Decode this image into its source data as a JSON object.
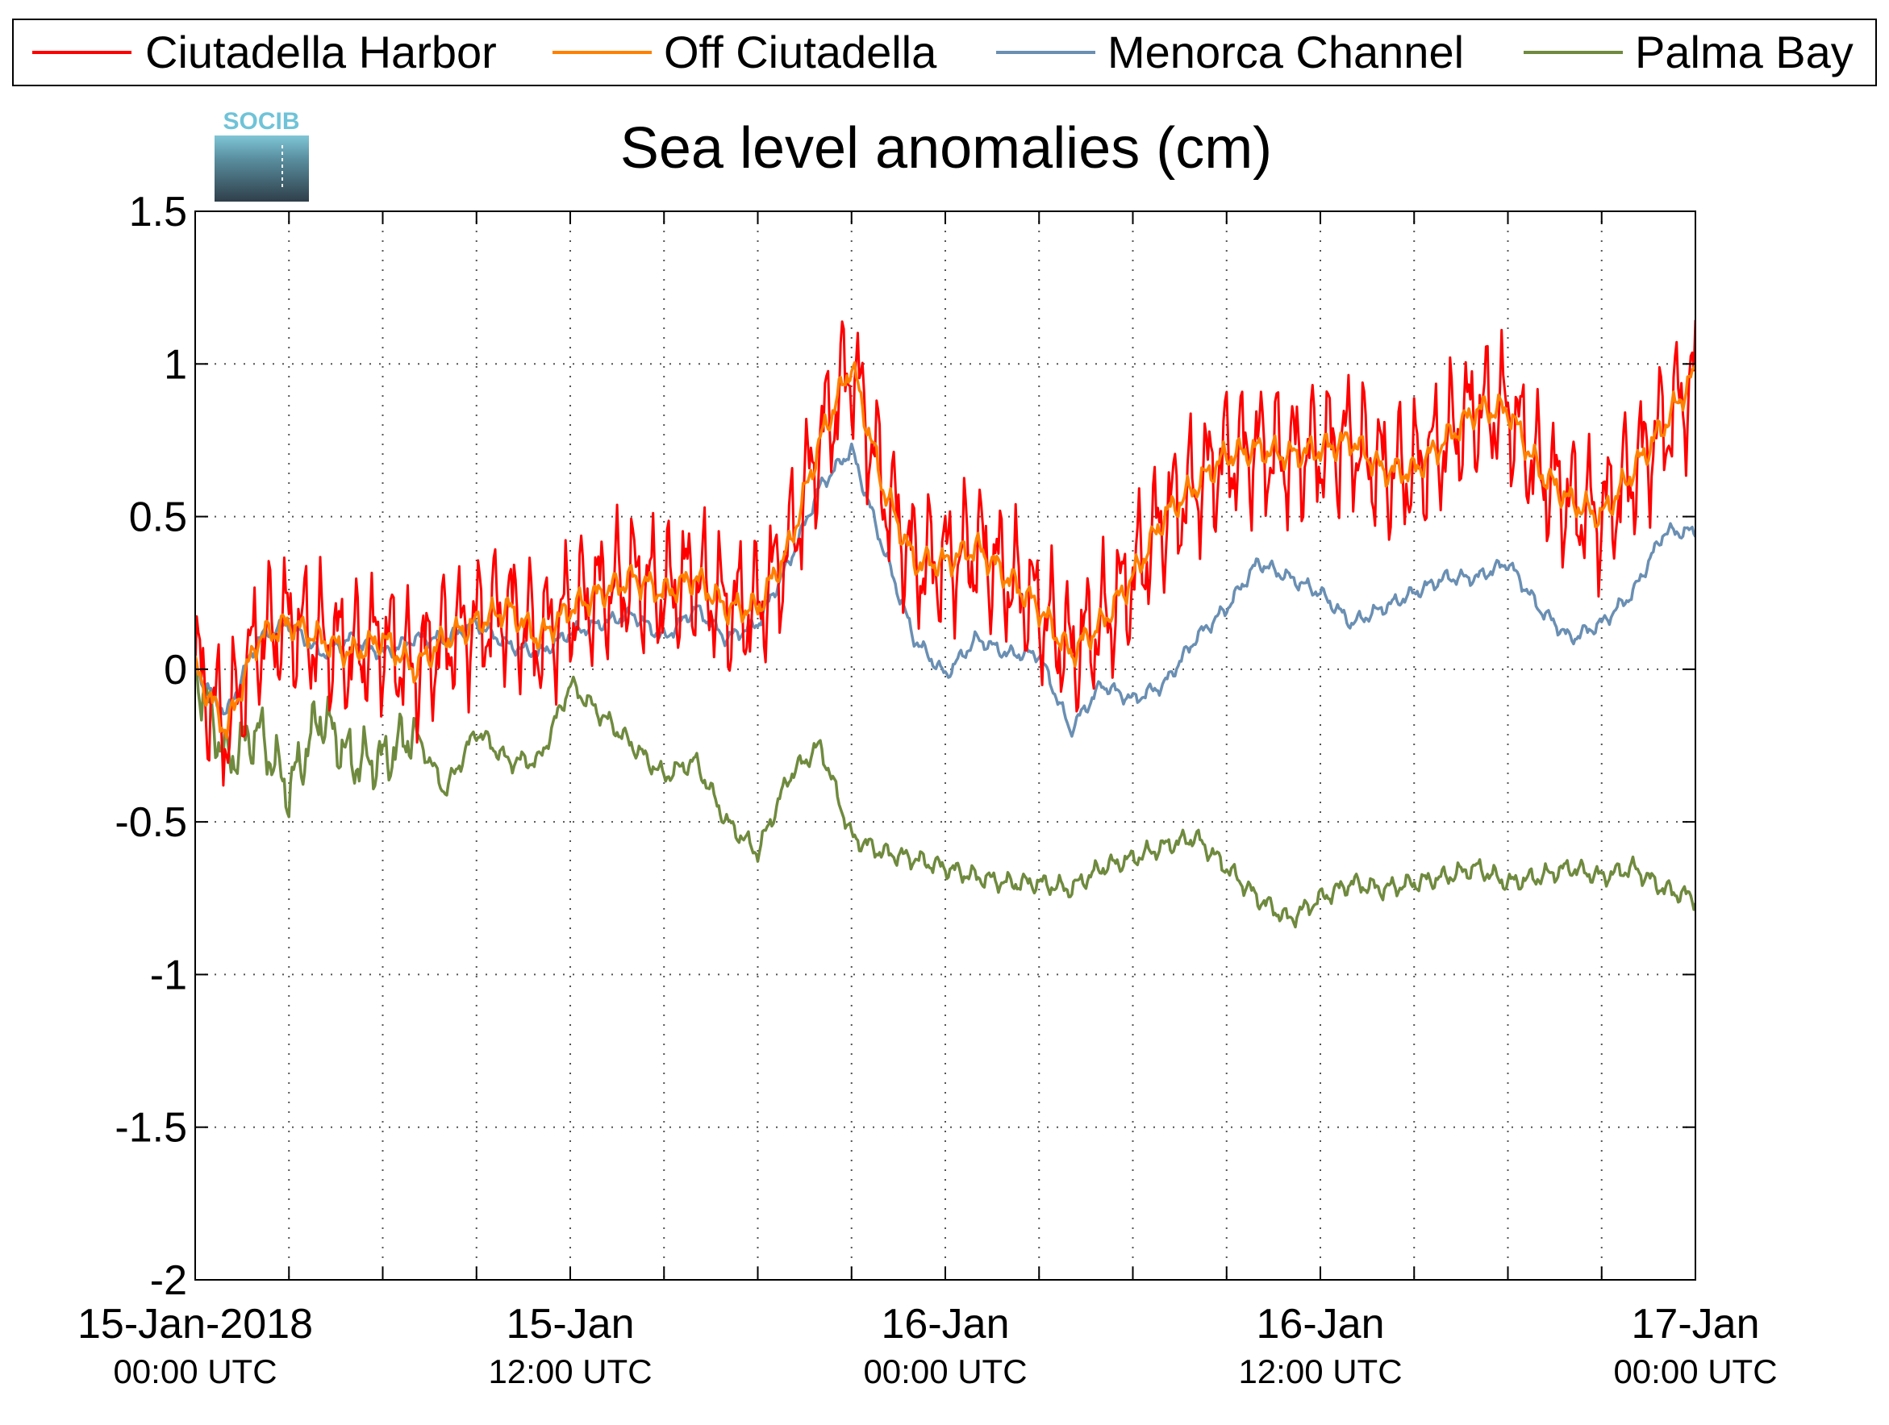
{
  "chart_data": {
    "type": "line",
    "title": "Sea level anomalies (cm)",
    "logo": "SOCIB",
    "xlabel": "",
    "ylabel": "",
    "ylim": [
      -2,
      1.5
    ],
    "yticks": [
      -2,
      -1.5,
      -1,
      -0.5,
      0,
      0.5,
      1,
      1.5
    ],
    "xlim_hours": [
      0,
      48
    ],
    "x_start": "2018-01-15T00:00Z",
    "x_ticks": [
      {
        "date": "15-Jan-2018",
        "time": "00:00 UTC"
      },
      {
        "date": "15-Jan",
        "time": "12:00 UTC"
      },
      {
        "date": "16-Jan",
        "time": "00:00 UTC"
      },
      {
        "date": "16-Jan",
        "time": "12:00 UTC"
      },
      {
        "date": "17-Jan",
        "time": "00:00 UTC"
      }
    ],
    "grid": true,
    "legend_position": "top",
    "series": [
      {
        "name": "Ciutadella Harbor",
        "color": "#ff0000",
        "noise": 0.28,
        "x": [
          0,
          1,
          2,
          3,
          4,
          5,
          6,
          7,
          8,
          9,
          10,
          11,
          12,
          13,
          14,
          15,
          16,
          17,
          18,
          19,
          20,
          21,
          22,
          23,
          24,
          25,
          26,
          27,
          28,
          29,
          30,
          31,
          32,
          33,
          34,
          35,
          36,
          37,
          38,
          39,
          40,
          41,
          42,
          43,
          44,
          45,
          46,
          47,
          48
        ],
        "values": [
          0.0,
          -0.2,
          0.1,
          0.15,
          0.1,
          0.05,
          0.1,
          0.0,
          0.1,
          0.15,
          0.2,
          0.1,
          0.2,
          0.25,
          0.3,
          0.25,
          0.3,
          0.2,
          0.2,
          0.4,
          0.75,
          1.0,
          0.6,
          0.35,
          0.35,
          0.4,
          0.3,
          0.2,
          0.05,
          0.15,
          0.3,
          0.5,
          0.6,
          0.7,
          0.72,
          0.7,
          0.72,
          0.75,
          0.65,
          0.65,
          0.75,
          0.85,
          0.85,
          0.65,
          0.55,
          0.5,
          0.65,
          0.8,
          0.95
        ]
      },
      {
        "name": "Off Ciutadella",
        "color": "#ff8000",
        "noise": 0.06,
        "x": [
          0,
          1,
          2,
          3,
          4,
          5,
          6,
          7,
          8,
          9,
          10,
          11,
          12,
          13,
          14,
          15,
          16,
          17,
          18,
          19,
          20,
          21,
          22,
          23,
          24,
          25,
          26,
          27,
          28,
          29,
          30,
          31,
          32,
          33,
          34,
          35,
          36,
          37,
          38,
          39,
          40,
          41,
          42,
          43,
          44,
          45,
          46,
          47,
          48
        ],
        "values": [
          0.0,
          -0.2,
          0.1,
          0.15,
          0.1,
          0.05,
          0.1,
          0.0,
          0.1,
          0.15,
          0.2,
          0.1,
          0.2,
          0.25,
          0.3,
          0.25,
          0.3,
          0.2,
          0.2,
          0.4,
          0.75,
          1.0,
          0.6,
          0.35,
          0.35,
          0.4,
          0.3,
          0.2,
          0.05,
          0.15,
          0.3,
          0.5,
          0.6,
          0.7,
          0.72,
          0.7,
          0.72,
          0.75,
          0.65,
          0.65,
          0.75,
          0.85,
          0.85,
          0.65,
          0.55,
          0.5,
          0.65,
          0.8,
          0.97
        ]
      },
      {
        "name": "Menorca Channel",
        "color": "#6a8fb3",
        "noise": 0.03,
        "x": [
          0,
          1,
          2,
          3,
          4,
          5,
          6,
          7,
          8,
          9,
          10,
          11,
          12,
          13,
          14,
          15,
          16,
          17,
          18,
          19,
          20,
          21,
          22,
          23,
          24,
          25,
          26,
          27,
          28,
          29,
          30,
          31,
          32,
          33,
          34,
          35,
          36,
          37,
          38,
          39,
          40,
          41,
          42,
          43,
          44,
          45,
          46,
          47,
          48
        ],
        "values": [
          0.0,
          -0.15,
          0.1,
          0.15,
          0.05,
          0.1,
          0.05,
          0.1,
          0.1,
          0.15,
          0.08,
          0.05,
          0.12,
          0.15,
          0.18,
          0.1,
          0.2,
          0.1,
          0.15,
          0.35,
          0.6,
          0.72,
          0.4,
          0.1,
          -0.02,
          0.1,
          0.05,
          0.05,
          -0.2,
          -0.05,
          -0.1,
          -0.05,
          0.1,
          0.2,
          0.35,
          0.3,
          0.25,
          0.15,
          0.2,
          0.25,
          0.3,
          0.3,
          0.35,
          0.2,
          0.1,
          0.15,
          0.25,
          0.45,
          0.45
        ]
      },
      {
        "name": "Palma Bay",
        "color": "#6f8a3e",
        "noise": 0.04,
        "x": [
          0,
          1,
          2,
          3,
          4,
          5,
          6,
          7,
          8,
          9,
          10,
          11,
          12,
          13,
          14,
          15,
          16,
          17,
          18,
          19,
          20,
          21,
          22,
          23,
          24,
          25,
          26,
          27,
          28,
          29,
          30,
          31,
          32,
          33,
          34,
          35,
          36,
          37,
          38,
          39,
          40,
          41,
          42,
          43,
          44,
          45,
          46,
          47,
          48
        ],
        "values": [
          0.0,
          -0.3,
          -0.2,
          -0.4,
          -0.15,
          -0.3,
          -0.3,
          -0.2,
          -0.4,
          -0.2,
          -0.3,
          -0.3,
          -0.05,
          -0.15,
          -0.25,
          -0.35,
          -0.3,
          -0.5,
          -0.6,
          -0.35,
          -0.25,
          -0.55,
          -0.6,
          -0.62,
          -0.65,
          -0.68,
          -0.7,
          -0.7,
          -0.72,
          -0.65,
          -0.62,
          -0.58,
          -0.55,
          -0.65,
          -0.75,
          -0.82,
          -0.75,
          -0.7,
          -0.72,
          -0.7,
          -0.68,
          -0.65,
          -0.7,
          -0.68,
          -0.65,
          -0.68,
          -0.65,
          -0.72,
          -0.75
        ]
      }
    ]
  }
}
